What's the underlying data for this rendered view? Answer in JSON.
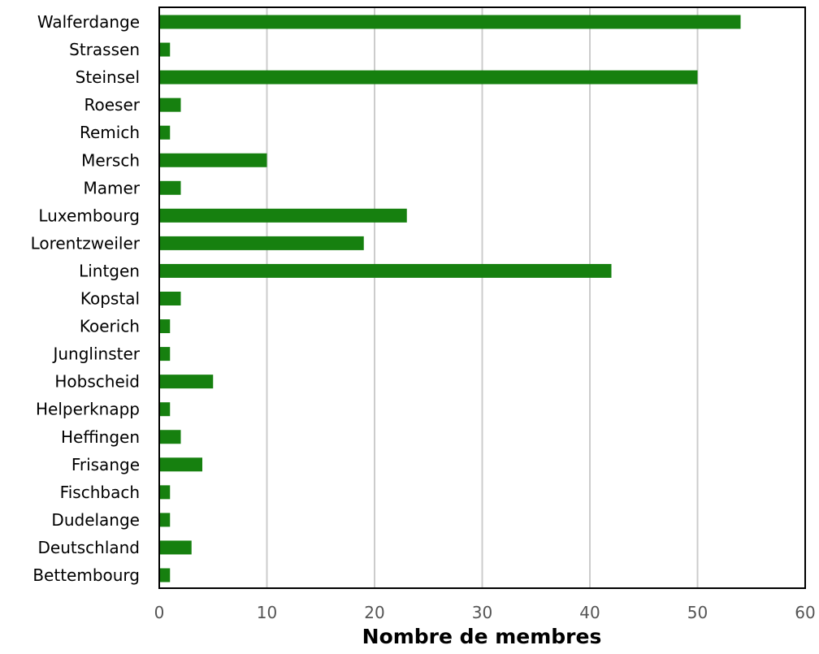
{
  "chart_data": {
    "type": "bar",
    "orientation": "horizontal",
    "categories": [
      "Walferdange",
      "Strassen",
      "Steinsel",
      "Roeser",
      "Remich",
      "Mersch",
      "Mamer",
      "Luxembourg",
      "Lorentzweiler",
      "Lintgen",
      "Kopstal",
      "Koerich",
      "Junglinster",
      "Hobscheid",
      "Helperknapp",
      "Heffingen",
      "Frisange",
      "Fischbach",
      "Dudelange",
      "Deutschland",
      "Bettembourg"
    ],
    "values": [
      54,
      1,
      50,
      2,
      1,
      10,
      2,
      23,
      19,
      42,
      2,
      1,
      1,
      5,
      1,
      2,
      4,
      1,
      1,
      3,
      1
    ],
    "xlabel": "Nombre de membres",
    "ylabel": "",
    "xlim": [
      0,
      60
    ],
    "xticks": [
      "0",
      "10",
      "20",
      "30",
      "40",
      "50",
      "60"
    ],
    "grid": "vertical",
    "legend": "none",
    "bar_color": "#16800f"
  }
}
